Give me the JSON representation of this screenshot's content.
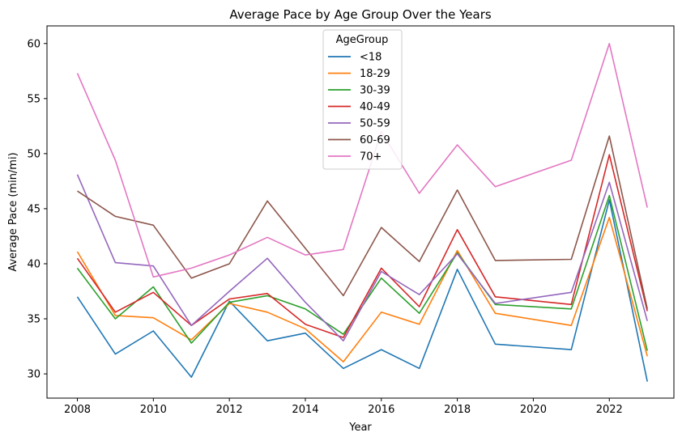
{
  "chart_data": {
    "type": "line",
    "title": "Average Pace by Age Group Over the Years",
    "xlabel": "Year",
    "ylabel": "Average Pace (min/mi)",
    "xlim": [
      2007.2,
      2023.7
    ],
    "ylim": [
      27.8,
      61.6
    ],
    "xticks": [
      2008,
      2010,
      2012,
      2014,
      2016,
      2018,
      2020,
      2022
    ],
    "yticks": [
      30,
      35,
      40,
      45,
      50,
      55,
      60
    ],
    "grid": false,
    "legend": {
      "title": "AgeGroup",
      "placement": "upper-center"
    },
    "x": [
      2008,
      2009,
      2010,
      2011,
      2012,
      2013,
      2014,
      2015,
      2016,
      2017,
      2018,
      2019,
      2021,
      2022,
      2023
    ],
    "series": [
      {
        "name": "<18",
        "color": "#1f77b4",
        "values": [
          37.0,
          31.8,
          33.9,
          29.7,
          36.6,
          33.0,
          33.7,
          30.5,
          32.2,
          30.5,
          39.5,
          32.7,
          32.2,
          45.8,
          29.3
        ]
      },
      {
        "name": "18-29",
        "color": "#ff7f0e",
        "values": [
          41.1,
          35.3,
          35.1,
          33.1,
          36.4,
          35.6,
          34.1,
          31.1,
          35.6,
          34.5,
          41.2,
          35.5,
          34.4,
          44.2,
          31.6
        ]
      },
      {
        "name": "30-39",
        "color": "#2ca02c",
        "values": [
          39.6,
          35.0,
          37.9,
          32.8,
          36.5,
          37.1,
          35.9,
          33.6,
          38.7,
          35.5,
          41.0,
          36.3,
          35.9,
          46.2,
          32.1
        ]
      },
      {
        "name": "40-49",
        "color": "#d62728",
        "values": [
          40.5,
          35.6,
          37.4,
          34.4,
          36.8,
          37.3,
          34.5,
          33.3,
          39.6,
          36.1,
          43.1,
          37.0,
          36.3,
          49.9,
          35.7
        ]
      },
      {
        "name": "50-59",
        "color": "#9467bd",
        "values": [
          48.1,
          40.1,
          39.8,
          34.4,
          37.5,
          40.5,
          36.5,
          33.0,
          39.3,
          37.2,
          40.9,
          36.4,
          37.4,
          47.4,
          34.8
        ]
      },
      {
        "name": "60-69",
        "color": "#8c564b",
        "values": [
          46.6,
          44.3,
          43.5,
          38.7,
          40.0,
          45.7,
          41.4,
          37.1,
          43.3,
          40.2,
          46.7,
          40.3,
          40.4,
          51.6,
          35.9
        ]
      },
      {
        "name": "70+",
        "color": "#e377c2",
        "values": [
          57.3,
          49.4,
          38.8,
          39.6,
          40.8,
          42.4,
          40.8,
          41.3,
          52.0,
          46.4,
          50.8,
          47.0,
          49.4,
          60.0,
          45.1
        ]
      }
    ]
  }
}
